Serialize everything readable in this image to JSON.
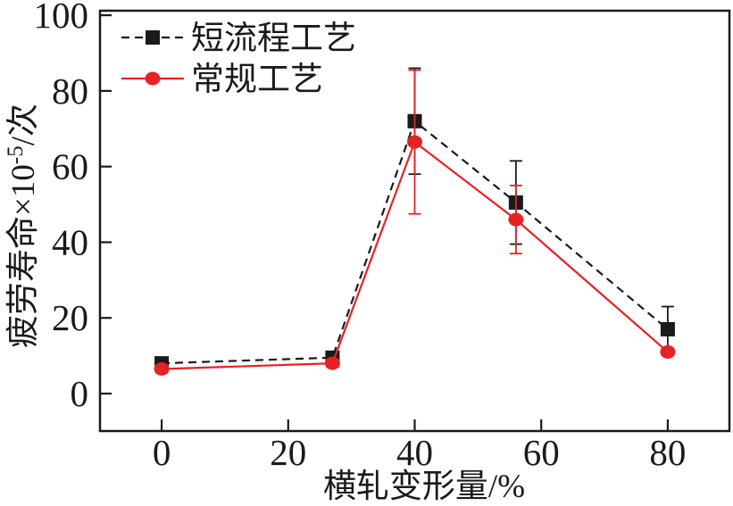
{
  "chart_data": {
    "type": "line",
    "title": "",
    "xlabel": "横轧变形量/%",
    "ylabel_prefix": "疲劳寿命×10",
    "ylabel_superscript": "-5",
    "ylabel_suffix": "/次",
    "xlim": [
      -9.75,
      89.75
    ],
    "ylim": [
      -9.9,
      101.2
    ],
    "x_ticks": [
      0,
      20,
      40,
      60,
      80
    ],
    "y_ticks": [
      0,
      20,
      40,
      60,
      80,
      100
    ],
    "grid": false,
    "legend_position": "top-left-inside",
    "axis_color": "#1a1a1a",
    "series": [
      {
        "name": "短流程工艺",
        "color": "#1a1a1a",
        "line_style": "dashed",
        "marker": "square",
        "x": [
          0,
          27,
          40,
          56,
          80
        ],
        "y": [
          8,
          9.5,
          72,
          50.5,
          17
        ],
        "y_err": [
          1,
          1,
          14,
          11,
          6
        ]
      },
      {
        "name": "常规工艺",
        "color": "#e62225",
        "line_style": "solid",
        "marker": "circle",
        "x": [
          0,
          27,
          40,
          56,
          80
        ],
        "y": [
          6.5,
          8,
          66.5,
          46,
          11
        ],
        "y_err": [
          1,
          1,
          19,
          9,
          1
        ]
      }
    ]
  }
}
